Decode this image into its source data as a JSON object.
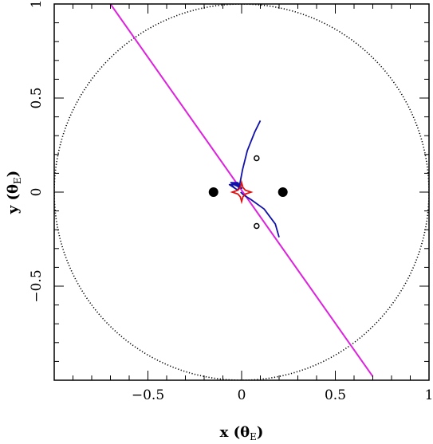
{
  "chart_data": {
    "type": "scatter",
    "xlim": [
      -1,
      1
    ],
    "ylim": [
      -1,
      1
    ],
    "xlabel": "x",
    "xunit_main": "θ",
    "xunit_sub": "E",
    "ylabel": "y",
    "yunit_main": "θ",
    "yunit_sub": "E",
    "x_ticks": [
      -0.5,
      0,
      0.5,
      1
    ],
    "x_tick_labels": [
      "−0.5",
      "0",
      "0.5",
      "1"
    ],
    "y_ticks": [
      -0.5,
      0,
      0.5,
      1
    ],
    "y_tick_labels": [
      "−0.5",
      "0",
      "0.5",
      "1"
    ],
    "grid": false,
    "colors": {
      "trajectory": "#dd22dd",
      "caustic": "#dd1111",
      "images": "#1111aa",
      "einstein_ring": "#000000",
      "lens": "#000000"
    },
    "einstein_ring": {
      "center": [
        0,
        0
      ],
      "radius": 1
    },
    "lenses": [
      {
        "x": -0.15,
        "y": 0.0
      },
      {
        "x": 0.22,
        "y": 0.0
      }
    ],
    "planet_images": [
      {
        "x": 0.08,
        "y": 0.18
      },
      {
        "x": 0.08,
        "y": -0.18
      }
    ],
    "source_trajectory": {
      "x": [
        -0.7,
        0.7
      ],
      "y": [
        1.0,
        -0.98
      ]
    },
    "caustic": [
      [
        0.05,
        0.0
      ],
      [
        0.02,
        0.01
      ],
      [
        0.007,
        0.025
      ],
      [
        0.0,
        0.05
      ],
      [
        -0.007,
        0.025
      ],
      [
        -0.02,
        0.01
      ],
      [
        -0.05,
        0.0
      ],
      [
        -0.02,
        -0.01
      ],
      [
        -0.007,
        -0.025
      ],
      [
        0.0,
        -0.05
      ],
      [
        0.007,
        -0.025
      ],
      [
        0.02,
        -0.01
      ],
      [
        0.05,
        0.0
      ]
    ],
    "image_tracks": [
      [
        [
          0.1,
          0.38
        ],
        [
          0.07,
          0.32
        ],
        [
          0.03,
          0.22
        ],
        [
          0.005,
          0.12
        ],
        [
          -0.01,
          0.04
        ],
        [
          -0.02,
          0.01
        ]
      ],
      [
        [
          0.2,
          -0.24
        ],
        [
          0.18,
          -0.17
        ],
        [
          0.12,
          -0.09
        ],
        [
          0.05,
          -0.04
        ],
        [
          0.01,
          -0.015
        ],
        [
          -0.005,
          0.0
        ]
      ],
      [
        [
          -0.06,
          0.05
        ],
        [
          -0.02,
          0.05
        ],
        [
          0.0,
          0.02
        ],
        [
          -0.04,
          0.04
        ],
        [
          -0.065,
          0.04
        ],
        [
          -0.02,
          0.01
        ]
      ]
    ]
  }
}
